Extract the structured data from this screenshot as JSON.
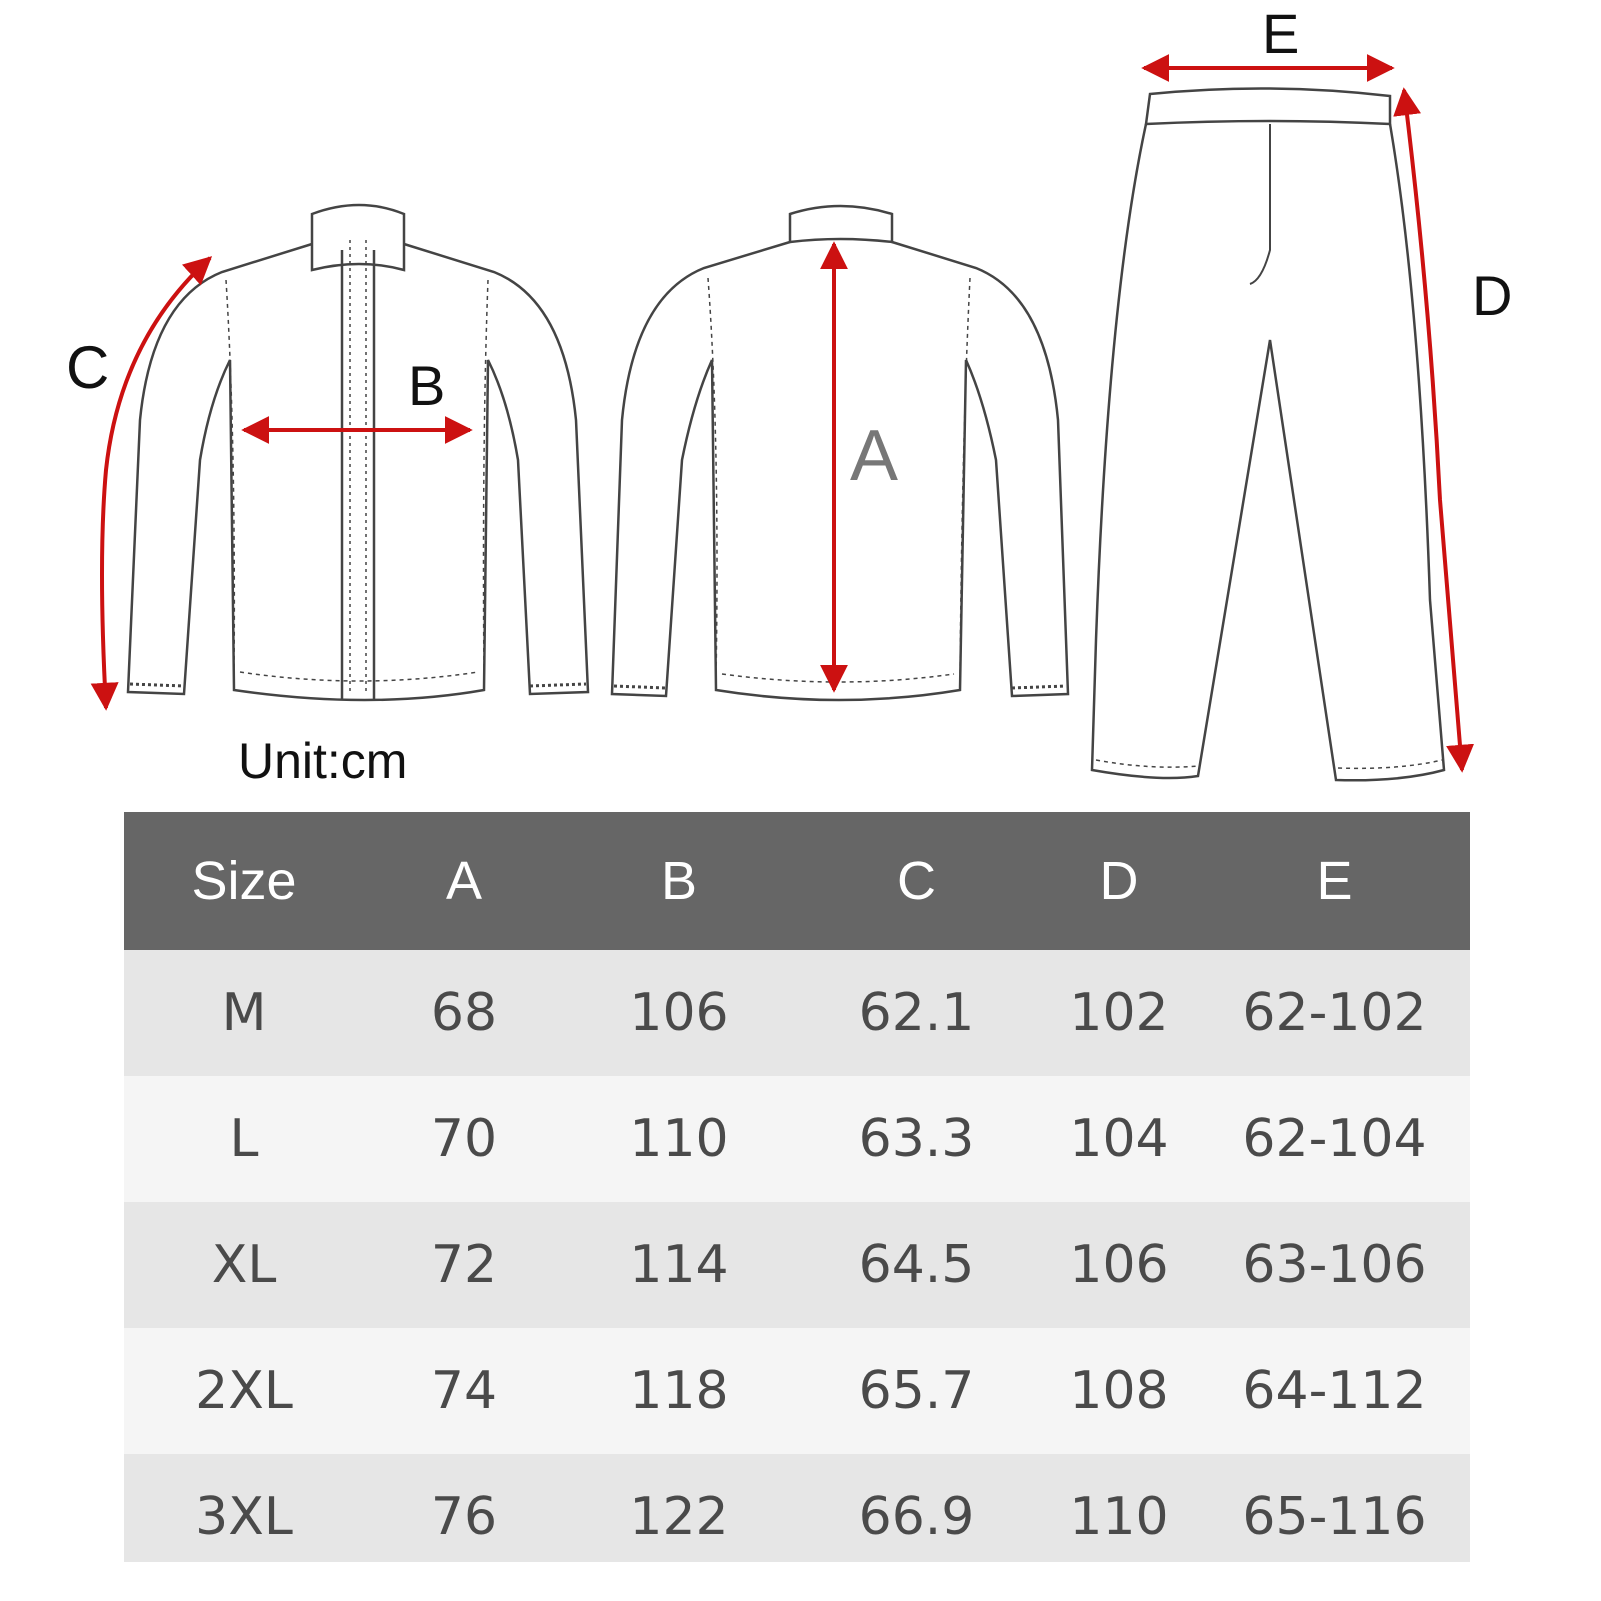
{
  "diagram": {
    "labels": {
      "a": "A",
      "b": "B",
      "c": "C",
      "d": "D",
      "e": "E"
    },
    "unit": "Unit:cm",
    "arrow_color": "#cc1111"
  },
  "table": {
    "headers": [
      "Size",
      "A",
      "B",
      "C",
      "D",
      "E"
    ],
    "rows": [
      [
        "M",
        "68",
        "106",
        "62.1",
        "102",
        "62-102"
      ],
      [
        "L",
        "70",
        "110",
        "63.3",
        "104",
        "62-104"
      ],
      [
        "XL",
        "72",
        "114",
        "64.5",
        "106",
        "63-106"
      ],
      [
        "2XL",
        "74",
        "118",
        "65.7",
        "108",
        "64-112"
      ],
      [
        "3XL",
        "76",
        "122",
        "66.9",
        "110",
        "65-116"
      ]
    ]
  }
}
